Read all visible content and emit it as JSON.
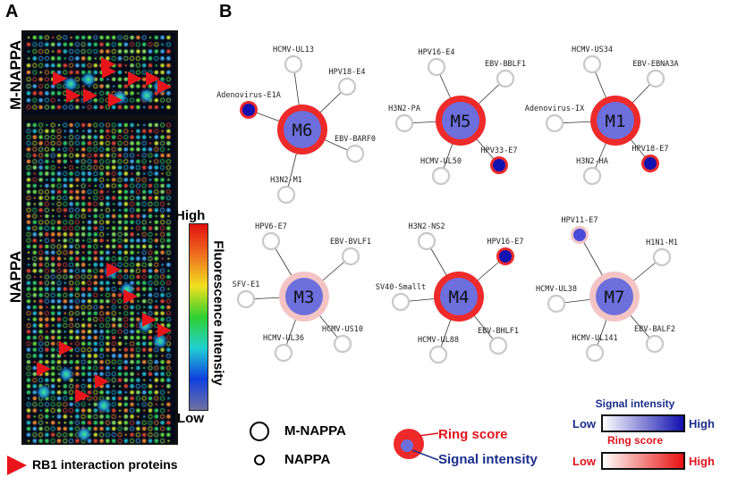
{
  "panel_a": {
    "letter": "A",
    "m_nappa_label": "M-NAPPA",
    "nappa_label": "NAPPA",
    "colorbar": {
      "title": "Fluorescence Intensity",
      "high": "High",
      "low": "Low"
    },
    "legend": {
      "marker": "red-triangle",
      "label": "RB1 interaction proteins",
      "color": "#e8141c"
    }
  },
  "panel_b": {
    "letter": "B",
    "modules": [
      {
        "name": "M6",
        "ring": "high",
        "partners": [
          {
            "name": "HCMV-UL13",
            "hit": false
          },
          {
            "name": "HPV18-E4",
            "hit": false
          },
          {
            "name": "Adenovirus-E1A",
            "hit": true,
            "ring": "high"
          },
          {
            "name": "EBV-BARF0",
            "hit": false
          },
          {
            "name": "H3N2-M1",
            "hit": false
          }
        ]
      },
      {
        "name": "M5",
        "ring": "high",
        "partners": [
          {
            "name": "HPV16-E4",
            "hit": false
          },
          {
            "name": "EBV-BBLF1",
            "hit": false
          },
          {
            "name": "H3N2-PA",
            "hit": false
          },
          {
            "name": "HCMV-UL50",
            "hit": false
          },
          {
            "name": "HPV33-E7",
            "hit": true,
            "ring": "high"
          }
        ]
      },
      {
        "name": "M1",
        "ring": "high",
        "partners": [
          {
            "name": "HCMV-US34",
            "hit": false
          },
          {
            "name": "EBV-EBNA3A",
            "hit": false
          },
          {
            "name": "Adenovirus-IX",
            "hit": false
          },
          {
            "name": "H3N2-HA",
            "hit": false
          },
          {
            "name": "HPV18-E7",
            "hit": true,
            "ring": "high"
          }
        ]
      },
      {
        "name": "M3",
        "ring": "low",
        "partners": [
          {
            "name": "HPV6-E7",
            "hit": false
          },
          {
            "name": "EBV-BVLF1",
            "hit": false
          },
          {
            "name": "SFV-E1",
            "hit": false
          },
          {
            "name": "HCMV-UL36",
            "hit": false
          },
          {
            "name": "HCMV-US10",
            "hit": false
          }
        ]
      },
      {
        "name": "M4",
        "ring": "high",
        "partners": [
          {
            "name": "H3N2-NS2",
            "hit": false
          },
          {
            "name": "HPV16-E7",
            "hit": true,
            "ring": "high"
          },
          {
            "name": "SV40-Smallt",
            "hit": false
          },
          {
            "name": "HCMV-UL88",
            "hit": false
          },
          {
            "name": "EBV-BHLF1",
            "hit": false
          }
        ]
      },
      {
        "name": "M7",
        "ring": "low",
        "partners": [
          {
            "name": "HPV11-E7",
            "hit": true,
            "ring": "low"
          },
          {
            "name": "H1N1-M1",
            "hit": false
          },
          {
            "name": "HCMV-UL38",
            "hit": false
          },
          {
            "name": "HCMV-UL141",
            "hit": false
          },
          {
            "name": "EBV-BALF2",
            "hit": false
          }
        ]
      }
    ],
    "colors": {
      "ring_high": "#ee2a2a",
      "ring_low": "#f4c4c4",
      "module_fill": "#6c6fdc",
      "hit_fill": "#1212b0",
      "empty_node": "#c8c8c8",
      "signal_text": "#1a2e8a",
      "ring_text": "#e0141c"
    },
    "legend": {
      "m_nappa": "M-NAPPA",
      "nappa": "NAPPA",
      "ring_score": "Ring score",
      "signal_intensity": "Signal intensity",
      "signal_scale": {
        "title": "Signal intensity",
        "low": "Low",
        "high": "High"
      },
      "ring_scale": {
        "title": "Ring score",
        "low": "Low",
        "high": "High"
      }
    }
  }
}
